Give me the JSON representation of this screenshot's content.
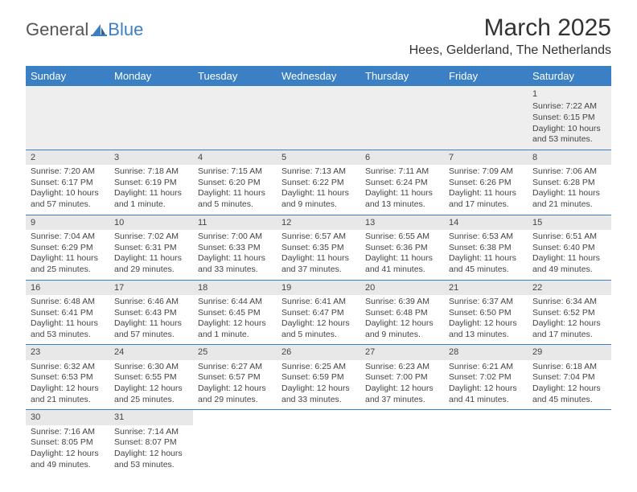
{
  "brand": {
    "part1": "General",
    "part2": "Blue"
  },
  "title": "March 2025",
  "location": "Hees, Gelderland, The Netherlands",
  "colors": {
    "header_bg": "#3b7fc4",
    "header_fg": "#ffffff",
    "shade": "#e8e8e8",
    "rule": "#3b7fc4"
  },
  "day_headers": [
    "Sunday",
    "Monday",
    "Tuesday",
    "Wednesday",
    "Thursday",
    "Friday",
    "Saturday"
  ],
  "weeks": [
    [
      null,
      null,
      null,
      null,
      null,
      null,
      {
        "n": "1",
        "sr": "Sunrise: 7:22 AM",
        "ss": "Sunset: 6:15 PM",
        "dl": "Daylight: 10 hours and 53 minutes."
      }
    ],
    [
      {
        "n": "2",
        "sr": "Sunrise: 7:20 AM",
        "ss": "Sunset: 6:17 PM",
        "dl": "Daylight: 10 hours and 57 minutes."
      },
      {
        "n": "3",
        "sr": "Sunrise: 7:18 AM",
        "ss": "Sunset: 6:19 PM",
        "dl": "Daylight: 11 hours and 1 minute."
      },
      {
        "n": "4",
        "sr": "Sunrise: 7:15 AM",
        "ss": "Sunset: 6:20 PM",
        "dl": "Daylight: 11 hours and 5 minutes."
      },
      {
        "n": "5",
        "sr": "Sunrise: 7:13 AM",
        "ss": "Sunset: 6:22 PM",
        "dl": "Daylight: 11 hours and 9 minutes."
      },
      {
        "n": "6",
        "sr": "Sunrise: 7:11 AM",
        "ss": "Sunset: 6:24 PM",
        "dl": "Daylight: 11 hours and 13 minutes."
      },
      {
        "n": "7",
        "sr": "Sunrise: 7:09 AM",
        "ss": "Sunset: 6:26 PM",
        "dl": "Daylight: 11 hours and 17 minutes."
      },
      {
        "n": "8",
        "sr": "Sunrise: 7:06 AM",
        "ss": "Sunset: 6:28 PM",
        "dl": "Daylight: 11 hours and 21 minutes."
      }
    ],
    [
      {
        "n": "9",
        "sr": "Sunrise: 7:04 AM",
        "ss": "Sunset: 6:29 PM",
        "dl": "Daylight: 11 hours and 25 minutes."
      },
      {
        "n": "10",
        "sr": "Sunrise: 7:02 AM",
        "ss": "Sunset: 6:31 PM",
        "dl": "Daylight: 11 hours and 29 minutes."
      },
      {
        "n": "11",
        "sr": "Sunrise: 7:00 AM",
        "ss": "Sunset: 6:33 PM",
        "dl": "Daylight: 11 hours and 33 minutes."
      },
      {
        "n": "12",
        "sr": "Sunrise: 6:57 AM",
        "ss": "Sunset: 6:35 PM",
        "dl": "Daylight: 11 hours and 37 minutes."
      },
      {
        "n": "13",
        "sr": "Sunrise: 6:55 AM",
        "ss": "Sunset: 6:36 PM",
        "dl": "Daylight: 11 hours and 41 minutes."
      },
      {
        "n": "14",
        "sr": "Sunrise: 6:53 AM",
        "ss": "Sunset: 6:38 PM",
        "dl": "Daylight: 11 hours and 45 minutes."
      },
      {
        "n": "15",
        "sr": "Sunrise: 6:51 AM",
        "ss": "Sunset: 6:40 PM",
        "dl": "Daylight: 11 hours and 49 minutes."
      }
    ],
    [
      {
        "n": "16",
        "sr": "Sunrise: 6:48 AM",
        "ss": "Sunset: 6:41 PM",
        "dl": "Daylight: 11 hours and 53 minutes."
      },
      {
        "n": "17",
        "sr": "Sunrise: 6:46 AM",
        "ss": "Sunset: 6:43 PM",
        "dl": "Daylight: 11 hours and 57 minutes."
      },
      {
        "n": "18",
        "sr": "Sunrise: 6:44 AM",
        "ss": "Sunset: 6:45 PM",
        "dl": "Daylight: 12 hours and 1 minute."
      },
      {
        "n": "19",
        "sr": "Sunrise: 6:41 AM",
        "ss": "Sunset: 6:47 PM",
        "dl": "Daylight: 12 hours and 5 minutes."
      },
      {
        "n": "20",
        "sr": "Sunrise: 6:39 AM",
        "ss": "Sunset: 6:48 PM",
        "dl": "Daylight: 12 hours and 9 minutes."
      },
      {
        "n": "21",
        "sr": "Sunrise: 6:37 AM",
        "ss": "Sunset: 6:50 PM",
        "dl": "Daylight: 12 hours and 13 minutes."
      },
      {
        "n": "22",
        "sr": "Sunrise: 6:34 AM",
        "ss": "Sunset: 6:52 PM",
        "dl": "Daylight: 12 hours and 17 minutes."
      }
    ],
    [
      {
        "n": "23",
        "sr": "Sunrise: 6:32 AM",
        "ss": "Sunset: 6:53 PM",
        "dl": "Daylight: 12 hours and 21 minutes."
      },
      {
        "n": "24",
        "sr": "Sunrise: 6:30 AM",
        "ss": "Sunset: 6:55 PM",
        "dl": "Daylight: 12 hours and 25 minutes."
      },
      {
        "n": "25",
        "sr": "Sunrise: 6:27 AM",
        "ss": "Sunset: 6:57 PM",
        "dl": "Daylight: 12 hours and 29 minutes."
      },
      {
        "n": "26",
        "sr": "Sunrise: 6:25 AM",
        "ss": "Sunset: 6:59 PM",
        "dl": "Daylight: 12 hours and 33 minutes."
      },
      {
        "n": "27",
        "sr": "Sunrise: 6:23 AM",
        "ss": "Sunset: 7:00 PM",
        "dl": "Daylight: 12 hours and 37 minutes."
      },
      {
        "n": "28",
        "sr": "Sunrise: 6:21 AM",
        "ss": "Sunset: 7:02 PM",
        "dl": "Daylight: 12 hours and 41 minutes."
      },
      {
        "n": "29",
        "sr": "Sunrise: 6:18 AM",
        "ss": "Sunset: 7:04 PM",
        "dl": "Daylight: 12 hours and 45 minutes."
      }
    ],
    [
      {
        "n": "30",
        "sr": "Sunrise: 7:16 AM",
        "ss": "Sunset: 8:05 PM",
        "dl": "Daylight: 12 hours and 49 minutes."
      },
      {
        "n": "31",
        "sr": "Sunrise: 7:14 AM",
        "ss": "Sunset: 8:07 PM",
        "dl": "Daylight: 12 hours and 53 minutes."
      },
      null,
      null,
      null,
      null,
      null
    ]
  ]
}
